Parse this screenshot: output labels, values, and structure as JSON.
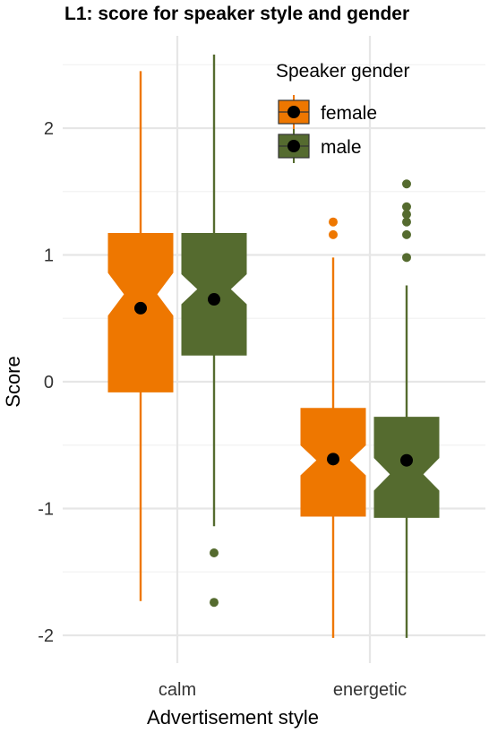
{
  "chart_data": {
    "type": "boxplot",
    "title": "L1: score for speaker style and gender",
    "xlabel": "Advertisement style",
    "ylabel": "Score",
    "categories": [
      "calm",
      "energetic"
    ],
    "ylim": [
      -2.1,
      2.6
    ],
    "yticks": [
      -2,
      -1,
      0,
      1,
      2
    ],
    "ytick_labels": [
      "-2",
      "-1",
      "0",
      "1",
      "2"
    ],
    "grid": true,
    "notched": true,
    "legend": {
      "title": "Speaker gender",
      "placement": "top-right"
    },
    "series": [
      {
        "name": "female",
        "color": "#EE7700",
        "boxes": [
          {
            "category": "calm",
            "whisker_low": -1.73,
            "q1": -0.08,
            "median": 0.69,
            "q3": 1.17,
            "whisker_high": 2.45,
            "notch_low": 0.52,
            "notch_high": 0.86,
            "mean": 0.58,
            "outliers": []
          },
          {
            "category": "energetic",
            "whisker_low": -2.02,
            "q1": -1.06,
            "median": -0.62,
            "q3": -0.21,
            "whisker_high": 0.98,
            "notch_low": -0.74,
            "notch_high": -0.5,
            "mean": -0.61,
            "outliers": [
              1.16,
              1.26
            ]
          }
        ]
      },
      {
        "name": "male",
        "color": "#556B2F",
        "boxes": [
          {
            "category": "calm",
            "whisker_low": -1.14,
            "q1": 0.21,
            "median": 0.73,
            "q3": 1.17,
            "whisker_high": 2.58,
            "notch_low": 0.61,
            "notch_high": 0.85,
            "mean": 0.65,
            "outliers": [
              -1.35,
              -1.74
            ]
          },
          {
            "category": "energetic",
            "whisker_low": -2.02,
            "q1": -1.07,
            "median": -0.73,
            "q3": -0.28,
            "whisker_high": 0.76,
            "notch_low": -0.86,
            "notch_high": -0.6,
            "mean": -0.62,
            "outliers": [
              0.98,
              1.16,
              1.26,
              1.32,
              1.38,
              1.56
            ]
          }
        ]
      }
    ]
  }
}
